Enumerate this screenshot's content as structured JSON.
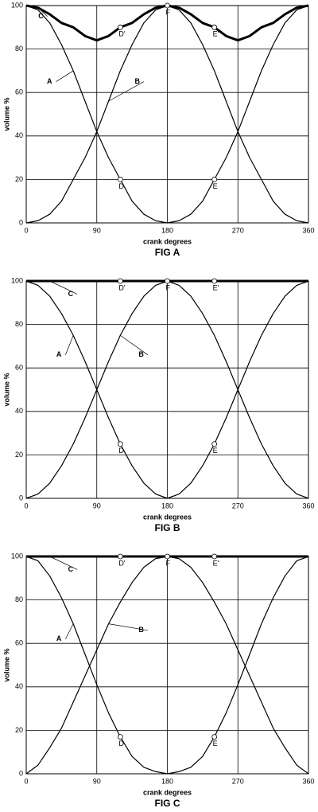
{
  "chart_data": [
    {
      "type": "line",
      "title": "FIG A",
      "xlabel": "crank degrees",
      "ylabel": "volume %",
      "x": [
        0,
        15,
        30,
        45,
        60,
        75,
        90,
        105,
        120,
        135,
        150,
        165,
        180,
        195,
        210,
        225,
        240,
        255,
        270,
        285,
        300,
        315,
        330,
        345,
        360
      ],
      "xlim": [
        0,
        360
      ],
      "xticks": [
        0,
        90,
        180,
        270,
        360
      ],
      "ylim": [
        0,
        100
      ],
      "yticks": [
        0,
        20,
        40,
        60,
        80,
        100
      ],
      "grid": true,
      "series": [
        {
          "name": "A",
          "color": "#000000",
          "line_width": 1.2,
          "values": [
            100,
            98,
            92,
            82,
            70,
            56,
            42,
            30,
            20,
            10,
            4,
            1,
            0,
            1,
            4,
            10,
            20,
            30,
            42,
            56,
            70,
            82,
            92,
            98,
            100
          ]
        },
        {
          "name": "B",
          "color": "#000000",
          "line_width": 1.2,
          "values": [
            0,
            1,
            4,
            10,
            20,
            30,
            42,
            56,
            70,
            82,
            92,
            98,
            100,
            98,
            92,
            82,
            70,
            56,
            42,
            30,
            20,
            10,
            4,
            1,
            0
          ]
        },
        {
          "name": "C",
          "color": "#000000",
          "line_width": 3,
          "values": [
            100,
            99,
            96,
            92,
            90,
            86,
            84,
            86,
            90,
            92,
            96,
            99,
            100,
            99,
            96,
            92,
            90,
            86,
            84,
            86,
            90,
            92,
            96,
            99,
            100
          ]
        }
      ],
      "points": [
        {
          "label": "D",
          "x": 120,
          "y": 20
        },
        {
          "label": "E",
          "x": 240,
          "y": 20
        },
        {
          "label": "D'",
          "x": 120,
          "y": 90
        },
        {
          "label": "E'",
          "x": 240,
          "y": 90
        },
        {
          "label": "F",
          "x": 180,
          "y": 100
        }
      ]
    },
    {
      "type": "line",
      "title": "FIG B",
      "xlabel": "crank degrees",
      "ylabel": "volume %",
      "x": [
        0,
        15,
        30,
        45,
        60,
        75,
        90,
        105,
        120,
        135,
        150,
        165,
        180,
        195,
        210,
        225,
        240,
        255,
        270,
        285,
        300,
        315,
        330,
        345,
        360
      ],
      "xlim": [
        0,
        360
      ],
      "xticks": [
        0,
        90,
        180,
        270,
        360
      ],
      "ylim": [
        0,
        100
      ],
      "yticks": [
        0,
        20,
        40,
        60,
        80,
        100
      ],
      "grid": true,
      "series": [
        {
          "name": "A",
          "color": "#000000",
          "line_width": 1.2,
          "values": [
            100,
            98,
            93,
            85,
            75,
            63,
            50,
            37,
            25,
            15,
            7,
            2,
            0,
            2,
            7,
            15,
            25,
            37,
            50,
            63,
            75,
            85,
            93,
            98,
            100
          ]
        },
        {
          "name": "B",
          "color": "#000000",
          "line_width": 1.2,
          "values": [
            0,
            2,
            7,
            15,
            25,
            37,
            50,
            63,
            75,
            85,
            93,
            98,
            100,
            98,
            93,
            85,
            75,
            63,
            50,
            37,
            25,
            15,
            7,
            2,
            0
          ]
        },
        {
          "name": "C",
          "color": "#000000",
          "line_width": 3,
          "values": [
            100,
            100,
            100,
            100,
            100,
            100,
            100,
            100,
            100,
            100,
            100,
            100,
            100,
            100,
            100,
            100,
            100,
            100,
            100,
            100,
            100,
            100,
            100,
            100,
            100
          ]
        }
      ],
      "points": [
        {
          "label": "D",
          "x": 120,
          "y": 25
        },
        {
          "label": "E",
          "x": 240,
          "y": 25
        },
        {
          "label": "D'",
          "x": 120,
          "y": 100
        },
        {
          "label": "E'",
          "x": 240,
          "y": 100
        },
        {
          "label": "F",
          "x": 180,
          "y": 100
        }
      ]
    },
    {
      "type": "line",
      "title": "FIG C",
      "xlabel": "crank degrees",
      "ylabel": "volume %",
      "x": [
        0,
        15,
        30,
        45,
        60,
        75,
        90,
        105,
        120,
        135,
        150,
        165,
        180,
        195,
        210,
        225,
        240,
        255,
        270,
        285,
        300,
        315,
        330,
        345,
        360
      ],
      "xlim": [
        0,
        360
      ],
      "xticks": [
        0,
        90,
        180,
        270,
        360
      ],
      "ylim": [
        0,
        100
      ],
      "yticks": [
        0,
        20,
        40,
        60,
        80,
        100
      ],
      "grid": true,
      "series": [
        {
          "name": "A",
          "color": "#000000",
          "line_width": 1.2,
          "values": [
            100,
            98,
            91,
            81,
            69,
            55,
            41,
            28,
            17,
            8,
            3,
            1,
            0,
            1,
            3,
            8,
            17,
            28,
            41,
            55,
            69,
            81,
            91,
            98,
            100
          ]
        },
        {
          "name": "B",
          "color": "#000000",
          "line_width": 1.2,
          "values": [
            0,
            4,
            12,
            21,
            33,
            45,
            57,
            69,
            79,
            88,
            95,
            99,
            100,
            99,
            95,
            88,
            79,
            69,
            57,
            45,
            33,
            21,
            12,
            4,
            0
          ]
        },
        {
          "name": "C",
          "color": "#000000",
          "line_width": 3,
          "values": [
            100,
            100,
            100,
            100,
            100,
            100,
            100,
            100,
            100,
            100,
            100,
            100,
            100,
            100,
            100,
            100,
            100,
            100,
            100,
            100,
            100,
            100,
            100,
            100,
            100
          ]
        }
      ],
      "points": [
        {
          "label": "D",
          "x": 120,
          "y": 17
        },
        {
          "label": "E",
          "x": 240,
          "y": 17
        },
        {
          "label": "D'",
          "x": 120,
          "y": 100
        },
        {
          "label": "E'",
          "x": 240,
          "y": 100
        },
        {
          "label": "F",
          "x": 180,
          "y": 100
        }
      ]
    }
  ]
}
